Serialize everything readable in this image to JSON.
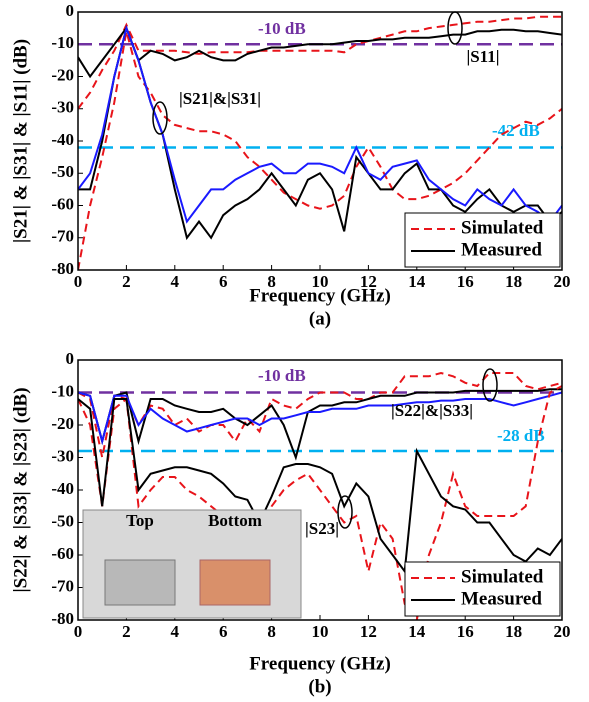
{
  "chart_data": [
    {
      "type": "line",
      "caption": "(a)",
      "xlabel": "Frequency (GHz)",
      "ylabel": "|S21| & |S31| & |S11| (dB)",
      "xlim": [
        0,
        20
      ],
      "ylim": [
        -80,
        0
      ],
      "xticks": [
        0,
        2,
        4,
        6,
        8,
        10,
        12,
        14,
        16,
        18,
        20
      ],
      "yticks": [
        0,
        -10,
        -20,
        -30,
        -40,
        -50,
        -60,
        -70,
        -80
      ],
      "x": [
        0,
        0.5,
        1,
        1.5,
        2,
        2.5,
        3,
        3.5,
        4,
        4.5,
        5,
        5.5,
        6,
        6.5,
        7,
        7.5,
        8,
        8.5,
        9,
        9.5,
        10,
        10.5,
        11,
        11.5,
        12,
        12.5,
        13,
        13.5,
        14,
        14.5,
        15,
        15.5,
        16,
        16.5,
        17,
        17.5,
        18,
        18.5,
        19,
        19.5,
        20
      ],
      "series": [
        {
          "name": "Simulated",
          "color": "#e8141a",
          "dash": true,
          "values": [
            -30,
            -25,
            -18,
            -12,
            -4,
            -12,
            -12,
            -12,
            -12,
            -12.5,
            -13,
            -12.5,
            -12.5,
            -12.5,
            -12.5,
            -12,
            -12,
            -12,
            -12,
            -12,
            -12,
            -12,
            -12.5,
            -10,
            -9,
            -8,
            -7,
            -6,
            -6,
            -5,
            -4.5,
            -4,
            -3.5,
            -3,
            -3,
            -2.5,
            -2,
            -2,
            -1.5,
            -1.5,
            -1.5
          ]
        },
        {
          "name": "Measured",
          "color": "#000000",
          "dash": false,
          "values": [
            -14,
            -20,
            -15,
            -10,
            -5,
            -15,
            -12,
            -13,
            -15,
            -14,
            -12,
            -14,
            -15,
            -15,
            -13,
            -12,
            -11,
            -11,
            -10.5,
            -10,
            -10,
            -10,
            -9.5,
            -9,
            -9,
            -8.5,
            -8.5,
            -8,
            -8,
            -8,
            -7.5,
            -7,
            -7,
            -6,
            -6,
            -5.5,
            -5.5,
            -6,
            -6,
            -6.5,
            -7
          ]
        },
        {
          "color": "#e8141a",
          "dash": true,
          "values": [
            -80,
            -60,
            -45,
            -28,
            -6,
            -20,
            -25,
            -32,
            -35,
            -36,
            -37,
            -37,
            -38,
            -40,
            -45,
            -48,
            -52,
            -56,
            -58,
            -60,
            -61,
            -60,
            -57,
            -48,
            -42,
            -48,
            -55,
            -58,
            -58,
            -57,
            -55,
            -53,
            -50,
            -46,
            -42,
            -38,
            -36,
            -34,
            -35,
            -33,
            -30
          ]
        },
        {
          "color": "#000000",
          "dash": false,
          "values": [
            -55,
            -55,
            -40,
            -20,
            -5,
            -15,
            -28,
            -38,
            -55,
            -70,
            -65,
            -70,
            -63,
            -60,
            -58,
            -55,
            -50,
            -55,
            -60,
            -52,
            -50,
            -55,
            -68,
            -45,
            -50,
            -55,
            -55,
            -50,
            -47,
            -55,
            -55,
            -60,
            -62,
            -58,
            -55,
            -60,
            -62,
            -60,
            -60,
            -65,
            -62
          ]
        },
        {
          "color": "#1a1aff",
          "dash": false,
          "values": [
            -55,
            -50,
            -38,
            -20,
            -5,
            -15,
            -28,
            -38,
            -52,
            -65,
            -60,
            -55,
            -55,
            -52,
            -50,
            -48,
            -47,
            -50,
            -50,
            -47,
            -47,
            -48,
            -50,
            -42,
            -50,
            -52,
            -48,
            -47,
            -46,
            -52,
            -55,
            -58,
            -60,
            -55,
            -58,
            -60,
            -55,
            -60,
            -62,
            -65,
            -60
          ]
        }
      ],
      "reference_lines": [
        {
          "value": -10,
          "label": "-10 dB",
          "color": "#7030a0"
        },
        {
          "value": -42,
          "label": "-42 dB",
          "color": "#00b0f0"
        }
      ],
      "annotations": [
        "|S11|",
        "|S21|&|S31|"
      ]
    },
    {
      "type": "line",
      "caption": "(b)",
      "xlabel": "Frequency (GHz)",
      "ylabel": "|S22| & |S33| & |S23| (dB)",
      "xlim": [
        0,
        20
      ],
      "ylim": [
        -80,
        0
      ],
      "xticks": [
        0,
        2,
        4,
        6,
        8,
        10,
        12,
        14,
        16,
        18,
        20
      ],
      "yticks": [
        0,
        -10,
        -20,
        -30,
        -40,
        -50,
        -60,
        -70,
        -80
      ],
      "x": [
        0,
        0.5,
        1,
        1.5,
        2,
        2.5,
        3,
        3.5,
        4,
        4.5,
        5,
        5.5,
        6,
        6.5,
        7,
        7.5,
        8,
        8.5,
        9,
        9.5,
        10,
        10.5,
        11,
        11.5,
        12,
        12.5,
        13,
        13.5,
        14,
        14.5,
        15,
        15.5,
        16,
        16.5,
        17,
        17.5,
        18,
        18.5,
        19,
        19.5,
        20
      ],
      "series": [
        {
          "name": "Simulated",
          "color": "#e8141a",
          "dash": true,
          "values": [
            -10,
            -12,
            -30,
            -11,
            -12,
            -20,
            -14,
            -15,
            -20,
            -18,
            -22,
            -20,
            -20,
            -25,
            -18,
            -22,
            -12,
            -14,
            -15,
            -12,
            -10,
            -10,
            -10,
            -12,
            -12,
            -10,
            -10,
            -5,
            -5,
            -5,
            -4,
            -5,
            -7,
            -8,
            -4,
            -4,
            -4,
            -8,
            -9,
            -8,
            -7
          ]
        },
        {
          "name": "Measured",
          "color": "#000000",
          "dash": false,
          "values": [
            -10,
            -11,
            -25,
            -11,
            -10,
            -25,
            -12,
            -12,
            -14,
            -15,
            -16,
            -16,
            -15,
            -18,
            -20,
            -17,
            -14,
            -20,
            -30,
            -16,
            -14,
            -14,
            -13,
            -13,
            -12,
            -11,
            -11,
            -11,
            -10,
            -10,
            -10,
            -10,
            -9.5,
            -9.5,
            -9.5,
            -9.5,
            -9.5,
            -9.5,
            -9.5,
            -9,
            -9
          ]
        },
        {
          "color": "#1a1aff",
          "dash": false,
          "values": [
            -10,
            -11,
            -25,
            -11,
            -11,
            -20,
            -15,
            -18,
            -20,
            -22,
            -21,
            -20,
            -19,
            -18,
            -18,
            -20,
            -18,
            -18,
            -17,
            -16,
            -16,
            -15,
            -15,
            -15,
            -14,
            -14,
            -14,
            -13.5,
            -13,
            -13,
            -12.5,
            -12.5,
            -12,
            -12,
            -12,
            -13,
            -14,
            -13,
            -12,
            -11,
            -10
          ]
        },
        {
          "color": "#e8141a",
          "dash": true,
          "values": [
            -12,
            -20,
            -45,
            -15,
            -12,
            -45,
            -40,
            -36,
            -36,
            -40,
            -42,
            -45,
            -48,
            -50,
            -48,
            -55,
            -45,
            -40,
            -37,
            -35,
            -40,
            -45,
            -50,
            -48,
            -65,
            -50,
            -55,
            -75,
            -80,
            -60,
            -50,
            -35,
            -45,
            -48,
            -48,
            -48,
            -48,
            -45,
            -25,
            -10,
            -8
          ]
        },
        {
          "color": "#000000",
          "dash": false,
          "values": [
            -12,
            -15,
            -45,
            -12,
            -12,
            -40,
            -35,
            -34,
            -33,
            -33,
            -34,
            -35,
            -38,
            -42,
            -43,
            -50,
            -42,
            -33,
            -32,
            -32,
            -33,
            -35,
            -45,
            -38,
            -42,
            -55,
            -60,
            -65,
            -28,
            -35,
            -42,
            -45,
            -46,
            -50,
            -50,
            -55,
            -60,
            -62,
            -58,
            -60,
            -55
          ]
        }
      ],
      "reference_lines": [
        {
          "value": -10,
          "label": "-10 dB",
          "color": "#7030a0"
        },
        {
          "value": -28,
          "label": "-28 dB",
          "color": "#00b0f0"
        }
      ],
      "annotations": [
        "|S22|&|S33|",
        "|S23|"
      ],
      "inset": {
        "labels": [
          "Top",
          "Bottom"
        ]
      }
    }
  ]
}
